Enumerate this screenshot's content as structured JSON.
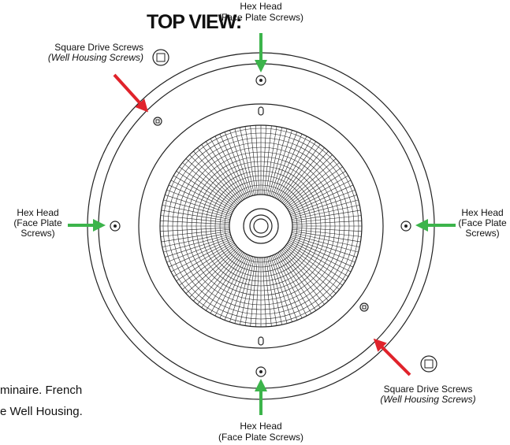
{
  "title": "TOP VIEW:",
  "callouts": [
    {
      "lines": [
        "Hex Head",
        "(Face Plate Screws)"
      ]
    },
    {
      "lines": [
        "Square Drive Screws",
        "(Well Housing Screws)"
      ]
    },
    {
      "lines": [
        "Hex Head",
        "(Face Plate",
        "Screws)"
      ]
    },
    {
      "lines": [
        "Hex Head",
        "(Face Plate",
        "Screws)"
      ]
    },
    {
      "lines": [
        "Square Drive Screws",
        "(Well Housing Screws)"
      ]
    },
    {
      "lines": [
        "Hex Head",
        "(Face Plate Screws)"
      ]
    }
  ],
  "cropped_text": [
    "minaire. French",
    "e Well Housing."
  ]
}
